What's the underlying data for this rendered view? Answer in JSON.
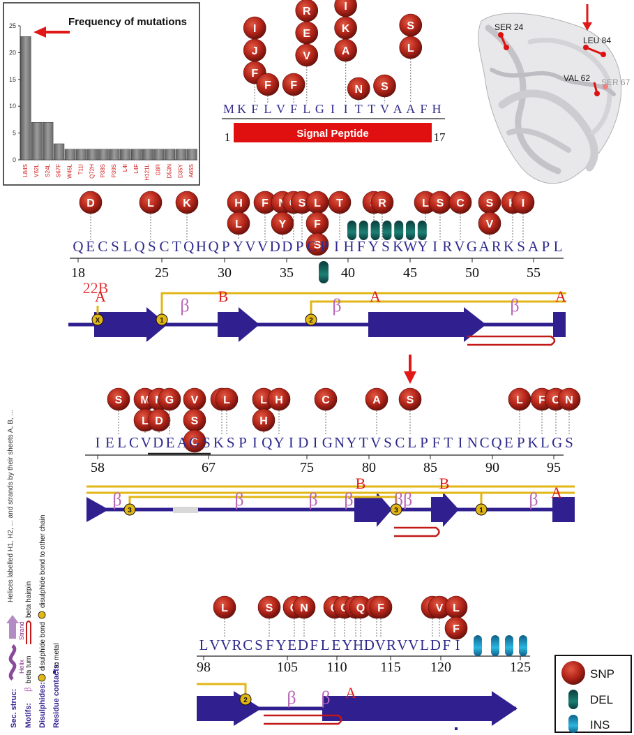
{
  "colors": {
    "snp_ball": "#b8271b",
    "sequence_text": "#2e2a8c",
    "strand_arrow": "#2f1f8f",
    "disulphide": "#e2b615",
    "beta_symbol": "#b767b7",
    "sheet_label": "#e01818",
    "deletion": "#0e5a55",
    "insertion": "#1a9bc7",
    "bar_gray": "#8a8a8a",
    "arrow_red": "#e01818"
  },
  "chart_data": {
    "type": "bar",
    "title": "Frequency of mutations",
    "categories": [
      "L84S",
      "V62L",
      "S24L",
      "S67F",
      "W45L",
      "T11I",
      "Q72H",
      "P38S",
      "P39S",
      "L4I",
      "L4F",
      "H121L",
      "G8R",
      "D53N",
      "D35Y",
      "A65S"
    ],
    "values": [
      23,
      7,
      7,
      3,
      2,
      2,
      2,
      2,
      2,
      2,
      2,
      2,
      2,
      2,
      2,
      2
    ],
    "ylim": [
      0,
      25
    ],
    "yticks": [
      "0",
      "5",
      "10",
      "15",
      "20",
      "25"
    ],
    "xlabel": "",
    "ylabel": "",
    "highlight": "L84S"
  },
  "structure_labels": [
    "SER 24",
    "LEU 84",
    "VAL 62",
    "SER 67"
  ],
  "signal_peptide": {
    "label": "Signal Peptide",
    "start": "1",
    "end": "17",
    "sequence": [
      "M",
      "K",
      "F",
      "L",
      "V",
      "F",
      "L",
      "G",
      "I",
      "I",
      "T",
      "T",
      "V",
      "A",
      "A",
      "F",
      "H"
    ],
    "snps": [
      {
        "pos": 3,
        "aa": [
          "I",
          "J",
          "F"
        ]
      },
      {
        "pos": 4,
        "aa": [
          "F"
        ]
      },
      {
        "pos": 6,
        "aa": [
          "F"
        ]
      },
      {
        "pos": 7,
        "aa": [
          "R",
          "E",
          "V"
        ]
      },
      {
        "pos": 10,
        "aa": [
          "I",
          "K",
          "A"
        ]
      },
      {
        "pos": 11,
        "aa": [
          "N"
        ]
      },
      {
        "pos": 13,
        "aa": [
          "S"
        ]
      },
      {
        "pos": 15,
        "aa": [
          "S",
          "L"
        ]
      }
    ]
  },
  "rows": [
    {
      "sequence": [
        "Q",
        "E",
        "C",
        "S",
        "L",
        "Q",
        "S",
        "C",
        "T",
        "Q",
        "H",
        "Q",
        "P",
        "Y",
        "V",
        "V",
        "D",
        "D",
        "P",
        "C",
        "P",
        "I",
        "H",
        "F",
        "Y",
        "S",
        "K",
        "W",
        "Y",
        "I",
        "R",
        "V",
        "G",
        "A",
        "R",
        "K",
        "S",
        "A",
        "P",
        "L"
      ],
      "start": 18,
      "ticks": [
        "18",
        "25",
        "30",
        "35",
        "40",
        "45",
        "50",
        "55"
      ],
      "sheets": [
        "A",
        "B",
        "A",
        "A"
      ],
      "betas": [
        "β",
        "β",
        "β"
      ],
      "bonds": [
        "X",
        "1",
        "2"
      ],
      "overlay": "22B"
    },
    {
      "sequence": [
        "I",
        "E",
        "L",
        "C",
        "V",
        "D",
        "E",
        "A",
        "G",
        "S",
        "K",
        "S",
        "P",
        "I",
        "Q",
        "Y",
        "I",
        "D",
        "I",
        "G",
        "N",
        "Y",
        "T",
        "V",
        "S",
        "C",
        "L",
        "P",
        "F",
        "T",
        "I",
        "N",
        "C",
        "Q",
        "E",
        "P",
        "K",
        "L",
        "G",
        "S"
      ],
      "ticks": [
        "58",
        "67",
        "75",
        "80",
        "85",
        "90",
        "95"
      ],
      "sheets": [
        "B",
        "B",
        "A"
      ],
      "betas": [
        "β",
        "β",
        "β",
        "β",
        "ββ",
        "β"
      ],
      "bonds": [
        "3",
        "3",
        "1"
      ]
    },
    {
      "sequence": [
        "L",
        "V",
        "V",
        "R",
        "C",
        "S",
        "F",
        "Y",
        "E",
        "D",
        "F",
        "L",
        "E",
        "Y",
        "H",
        "D",
        "V",
        "R",
        "V",
        "V",
        "L",
        "D",
        "F",
        "I"
      ],
      "ticks": [
        "98",
        "105",
        "110",
        "115",
        "120",
        "125"
      ],
      "sheets": [
        "A"
      ],
      "betas": [
        "β",
        "β"
      ],
      "bonds": [
        "2"
      ]
    }
  ],
  "snp_cols": {
    "r1": [
      {
        "x": 130,
        "letters": [
          "D"
        ]
      },
      {
        "x": 216,
        "letters": [
          "L"
        ]
      },
      {
        "x": 268,
        "letters": [
          "K"
        ]
      },
      {
        "x": 342,
        "letters": [
          "H",
          "L"
        ]
      },
      {
        "x": 380,
        "letters": [
          "F"
        ]
      },
      {
        "x": 405,
        "letters": [
          "N",
          "Y"
        ]
      },
      {
        "x": 421,
        "letters": [
          "G"
        ]
      },
      {
        "x": 433,
        "letters": [
          "S"
        ]
      },
      {
        "x": 455,
        "letters": [
          "L",
          "F",
          "S"
        ]
      },
      {
        "x": 487,
        "letters": [
          "T"
        ]
      },
      {
        "x": 536,
        "letters": [
          "S"
        ]
      },
      {
        "x": 548,
        "letters": [
          "R"
        ]
      },
      {
        "x": 610,
        "letters": [
          "L"
        ]
      },
      {
        "x": 631,
        "letters": [
          "S"
        ]
      },
      {
        "x": 660,
        "letters": [
          "C"
        ]
      },
      {
        "x": 702,
        "letters": [
          "S",
          "V"
        ]
      },
      {
        "x": 735,
        "letters": [
          "K"
        ]
      },
      {
        "x": 750,
        "letters": [
          "I"
        ]
      }
    ],
    "r2": [
      {
        "x": 170,
        "letters": [
          "S"
        ]
      },
      {
        "x": 208,
        "letters": [
          "M",
          "L"
        ]
      },
      {
        "x": 228,
        "letters": [
          "N",
          "D"
        ]
      },
      {
        "x": 243,
        "letters": [
          "G"
        ]
      },
      {
        "x": 279,
        "letters": [
          "V",
          "S",
          "C"
        ]
      },
      {
        "x": 318,
        "letters": [
          "F"
        ]
      },
      {
        "x": 325,
        "letters": [
          "L"
        ]
      },
      {
        "x": 378,
        "letters": [
          "L",
          "H"
        ]
      },
      {
        "x": 400,
        "letters": [
          "H"
        ]
      },
      {
        "x": 467,
        "letters": [
          "C"
        ]
      },
      {
        "x": 540,
        "letters": [
          "A"
        ]
      },
      {
        "x": 588,
        "letters": [
          "S"
        ]
      },
      {
        "x": 745,
        "letters": [
          "L"
        ]
      },
      {
        "x": 777,
        "letters": [
          "F"
        ]
      },
      {
        "x": 797,
        "letters": [
          "C"
        ]
      },
      {
        "x": 816,
        "letters": [
          "N"
        ]
      }
    ],
    "r3": [
      {
        "x": 322,
        "letters": [
          "L"
        ]
      },
      {
        "x": 386,
        "letters": [
          "S"
        ]
      },
      {
        "x": 422,
        "letters": [
          "G"
        ]
      },
      {
        "x": 436,
        "letters": [
          "N"
        ]
      },
      {
        "x": 480,
        "letters": [
          "Q"
        ]
      },
      {
        "x": 494,
        "letters": [
          "C"
        ]
      },
      {
        "x": 510,
        "letters": [
          "G"
        ]
      },
      {
        "x": 517,
        "letters": [
          "Q"
        ]
      },
      {
        "x": 540,
        "letters": [
          "D"
        ]
      },
      {
        "x": 546,
        "letters": [
          "F"
        ]
      },
      {
        "x": 620,
        "letters": [
          "E"
        ]
      },
      {
        "x": 630,
        "letters": [
          "V"
        ]
      },
      {
        "x": 654,
        "letters": [
          "L",
          "F"
        ]
      }
    ]
  },
  "legend": {
    "items": [
      "SNP",
      "DEL",
      "INS"
    ]
  },
  "key": {
    "sec_struc": "Sec. struc:",
    "helix": "Helix",
    "strand": "Strand",
    "helix_note": "Helices labelled H1, H2, ... and strands by their sheets A, B, ...",
    "motifs": "Motifs:",
    "beta_turn": "beta turn",
    "beta_hairpin": "beta hairpin",
    "disulphides": "Disulphides:",
    "disulphide_bond": "disulphide bond",
    "disulphide_other": "disulphide bond to other chain",
    "residue_contacts": "Residue contacts:",
    "to_metal": "to metal"
  }
}
